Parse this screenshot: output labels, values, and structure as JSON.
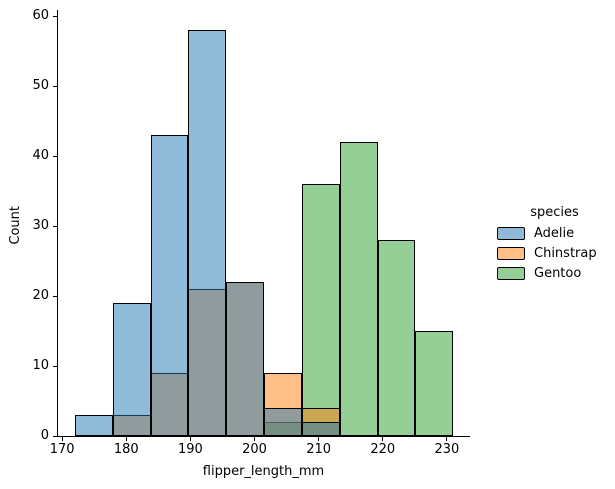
{
  "chart_data": {
    "type": "histogram",
    "xlabel": "flipper_length_mm",
    "ylabel": "Count",
    "legend_title": "species",
    "legend_position": "right-outside",
    "grid": false,
    "xlim": [
      169.2,
      233.6
    ],
    "ylim": [
      0,
      60.86
    ],
    "x_ticks": [
      170,
      180,
      190,
      200,
      210,
      220,
      230
    ],
    "y_ticks": [
      0,
      10,
      20,
      30,
      40,
      50,
      60
    ],
    "bin_edges": [
      172.0,
      177.9,
      183.8,
      189.7,
      195.6,
      201.5,
      207.4,
      213.3,
      219.2,
      225.1,
      231.0
    ],
    "bar_alpha": 0.5,
    "bar_edge_color": "#000000",
    "axis_color": "#000000",
    "series": [
      {
        "name": "Adelie",
        "color": "#1f77b4",
        "values": [
          3,
          19,
          43,
          58,
          22,
          4,
          2,
          0,
          0,
          0
        ]
      },
      {
        "name": "Chinstrap",
        "color": "#ff7f0e",
        "values": [
          0,
          3,
          9,
          21,
          22,
          9,
          4,
          0,
          0,
          0
        ]
      },
      {
        "name": "Gentoo",
        "color": "#2ca02c",
        "values": [
          0,
          0,
          0,
          0,
          0,
          2,
          36,
          42,
          28,
          15
        ]
      }
    ],
    "draw_order": [
      "Gentoo",
      "Chinstrap",
      "Adelie"
    ]
  }
}
